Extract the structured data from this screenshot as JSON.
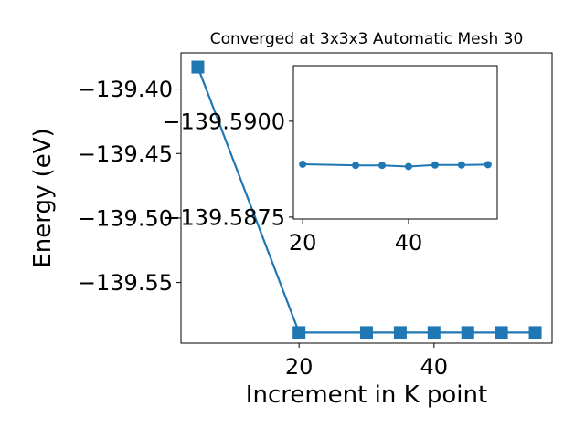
{
  "chart_data": {
    "type": "line",
    "title": "Converged at 3x3x3 Automatic Mesh 30",
    "xlabel": "Increment in K point",
    "ylabel": "Energy (eV)",
    "main": {
      "x": [
        5,
        20,
        30,
        35,
        40,
        45,
        50,
        55
      ],
      "y": [
        -139.383,
        -139.5888,
        -139.5888,
        -139.5888,
        -139.5888,
        -139.5888,
        -139.5888,
        -139.5888
      ],
      "xlim": [
        2.5,
        57.5
      ],
      "ylim": [
        -139.597,
        -139.372
      ],
      "xticks": [
        20,
        40
      ],
      "xtick_labels": [
        "20",
        "40"
      ],
      "yticks": [
        -139.4,
        -139.45,
        -139.5,
        -139.55
      ],
      "ytick_labels": [
        "−139.40",
        "−139.45",
        "−139.50",
        "−139.55"
      ],
      "marker": "square",
      "color": "#1f77b4"
    },
    "inset": {
      "x": [
        20,
        30,
        35,
        40,
        45,
        50,
        55
      ],
      "y": [
        -139.58888,
        -139.58885,
        -139.58885,
        -139.58882,
        -139.58886,
        -139.58886,
        -139.58887
      ],
      "xlim": [
        18.25,
        56.75
      ],
      "ylim": [
        -139.58745,
        -139.59145
      ],
      "xticks": [
        20,
        40
      ],
      "xtick_labels": [
        "20",
        "40"
      ],
      "yticks": [
        -139.59,
        -139.5875
      ],
      "ytick_labels": [
        "−139.5900",
        "−139.5875"
      ],
      "marker": "circle",
      "color": "#1f77b4"
    }
  }
}
